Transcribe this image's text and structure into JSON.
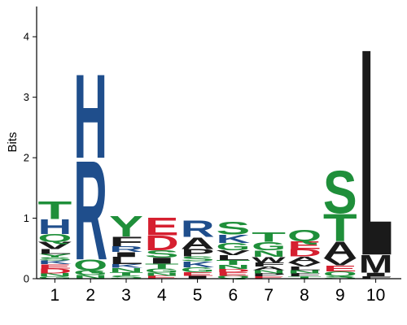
{
  "chart_data": {
    "type": "sequence-logo",
    "ylabel": "Bits",
    "ylim": [
      0,
      4.5
    ],
    "y_ticks": [
      "0",
      "1",
      "2",
      "3",
      "4"
    ],
    "y_tick_values": [
      0,
      1,
      2,
      3,
      4
    ],
    "positions": [
      "1",
      "2",
      "3",
      "4",
      "5",
      "6",
      "7",
      "8",
      "9",
      "10"
    ],
    "colors": {
      "hydrophobic": "#1a1a1a",
      "polar": "#1f8f3a",
      "basic": "#1f4e8c",
      "acidic": "#d62030"
    },
    "stacks": [
      [
        {
          "letter": "G",
          "bits": 0.04
        },
        {
          "letter": "N",
          "bits": 0.05
        },
        {
          "letter": "D",
          "bits": 0.08
        },
        {
          "letter": "E",
          "bits": 0.07
        },
        {
          "letter": "K",
          "bits": 0.06
        },
        {
          "letter": "S",
          "bits": 0.05
        },
        {
          "letter": "Y",
          "bits": 0.06
        },
        {
          "letter": "L",
          "bits": 0.08
        },
        {
          "letter": "V",
          "bits": 0.12
        },
        {
          "letter": "Q",
          "bits": 0.13
        },
        {
          "letter": "H",
          "bits": 0.25
        },
        {
          "letter": "T",
          "bits": 0.3
        }
      ],
      [
        {
          "letter": "N",
          "bits": 0.06
        },
        {
          "letter": "G",
          "bits": 0.08
        },
        {
          "letter": "Q",
          "bits": 0.18
        },
        {
          "letter": "R",
          "bits": 1.68
        },
        {
          "letter": "H",
          "bits": 1.42
        }
      ],
      [
        {
          "letter": "S",
          "bits": 0.05
        },
        {
          "letter": "T",
          "bits": 0.06
        },
        {
          "letter": "N",
          "bits": 0.07
        },
        {
          "letter": "K",
          "bits": 0.06
        },
        {
          "letter": "L",
          "bits": 0.12
        },
        {
          "letter": "I",
          "bits": 0.08
        },
        {
          "letter": "R",
          "bits": 0.1
        },
        {
          "letter": "F",
          "bits": 0.16
        },
        {
          "letter": "Y",
          "bits": 0.35
        }
      ],
      [
        {
          "letter": "E",
          "bits": 0.05
        },
        {
          "letter": "N",
          "bits": 0.05
        },
        {
          "letter": "G",
          "bits": 0.07
        },
        {
          "letter": "T",
          "bits": 0.08
        },
        {
          "letter": "I",
          "bits": 0.1
        },
        {
          "letter": "S",
          "bits": 0.12
        },
        {
          "letter": "D",
          "bits": 0.25
        },
        {
          "letter": "E",
          "bits": 0.3
        }
      ],
      [
        {
          "letter": "I",
          "bits": 0.05
        },
        {
          "letter": "E",
          "bits": 0.06
        },
        {
          "letter": "G",
          "bits": 0.08
        },
        {
          "letter": "K",
          "bits": 0.1
        },
        {
          "letter": "S",
          "bits": 0.08
        },
        {
          "letter": "P",
          "bits": 0.12
        },
        {
          "letter": "A",
          "bits": 0.2
        },
        {
          "letter": "R",
          "bits": 0.28
        }
      ],
      [
        {
          "letter": "Q",
          "bits": 0.05
        },
        {
          "letter": "E",
          "bits": 0.06
        },
        {
          "letter": "D",
          "bits": 0.05
        },
        {
          "letter": "N",
          "bits": 0.07
        },
        {
          "letter": "T",
          "bits": 0.08
        },
        {
          "letter": "L",
          "bits": 0.08
        },
        {
          "letter": "V",
          "bits": 0.08
        },
        {
          "letter": "G",
          "bits": 0.12
        },
        {
          "letter": "K",
          "bits": 0.14
        },
        {
          "letter": "S",
          "bits": 0.21
        }
      ],
      [
        {
          "letter": "E",
          "bits": 0.04
        },
        {
          "letter": "P",
          "bits": 0.05
        },
        {
          "letter": "N",
          "bits": 0.05
        },
        {
          "letter": "A",
          "bits": 0.06
        },
        {
          "letter": "F",
          "bits": 0.07
        },
        {
          "letter": "W",
          "bits": 0.09
        },
        {
          "letter": "N",
          "bits": 0.11
        },
        {
          "letter": "G",
          "bits": 0.14
        },
        {
          "letter": "T",
          "bits": 0.16
        }
      ],
      [
        {
          "letter": "T",
          "bits": 0.04
        },
        {
          "letter": "F",
          "bits": 0.05
        },
        {
          "letter": "N",
          "bits": 0.05
        },
        {
          "letter": "L",
          "bits": 0.06
        },
        {
          "letter": "V",
          "bits": 0.07
        },
        {
          "letter": "A",
          "bits": 0.1
        },
        {
          "letter": "D",
          "bits": 0.12
        },
        {
          "letter": "E",
          "bits": 0.13
        },
        {
          "letter": "Q",
          "bits": 0.2
        }
      ],
      [
        {
          "letter": "S",
          "bits": 0.04
        },
        {
          "letter": "Q",
          "bits": 0.08
        },
        {
          "letter": "E",
          "bits": 0.1
        },
        {
          "letter": "V",
          "bits": 0.12
        },
        {
          "letter": "A",
          "bits": 0.28
        },
        {
          "letter": "T",
          "bits": 0.46
        },
        {
          "letter": "S",
          "bits": 0.72
        }
      ],
      [
        {
          "letter": "F",
          "bits": 0.04
        },
        {
          "letter": "I",
          "bits": 0.06
        },
        {
          "letter": "M",
          "bits": 0.3
        },
        {
          "letter": "L",
          "bits": 3.5
        }
      ]
    ]
  }
}
